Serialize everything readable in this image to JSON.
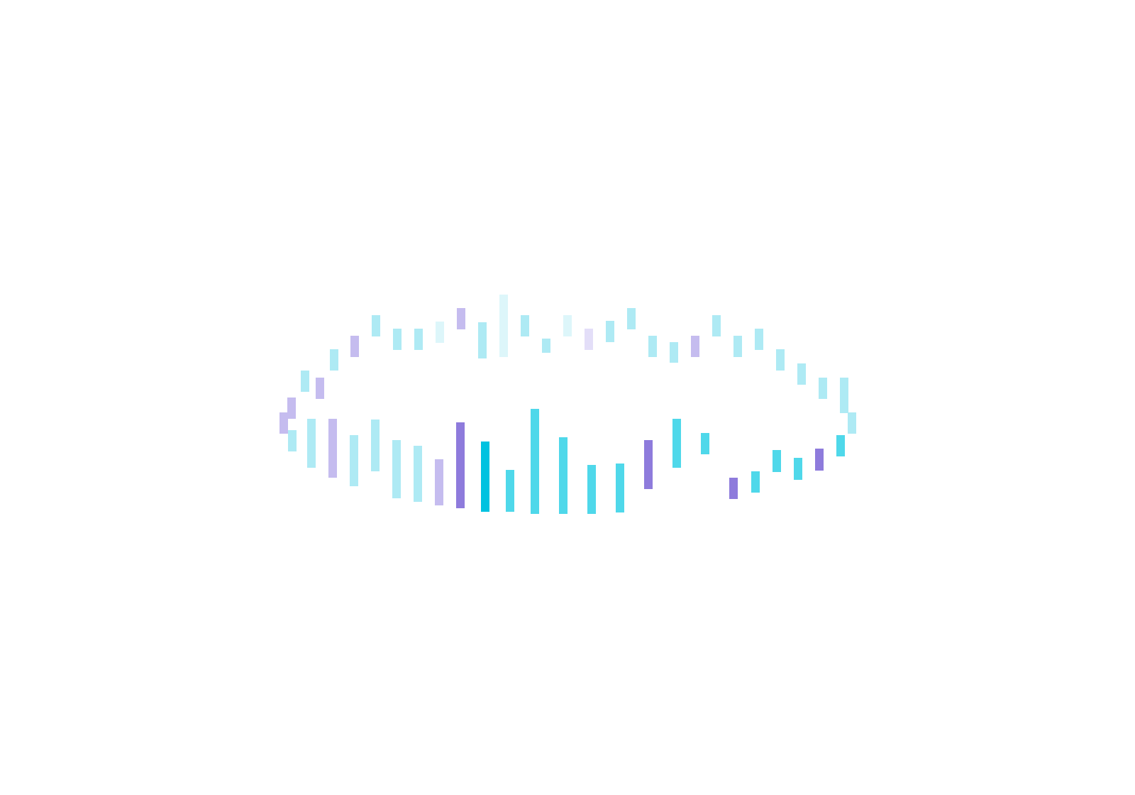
{
  "graphic": {
    "name": "bar-ring-loader",
    "colors": {
      "background": "#ffffff",
      "cyan_strong": "#00c2e0",
      "cyan": "#4fd8ea",
      "cyan_light": "#aeeaf4",
      "cyan_faint": "#ddf6fa",
      "violet": "#8e7bdc",
      "violet_light": "#c5bcef",
      "violet_faint": "#e3def8"
    }
  }
}
